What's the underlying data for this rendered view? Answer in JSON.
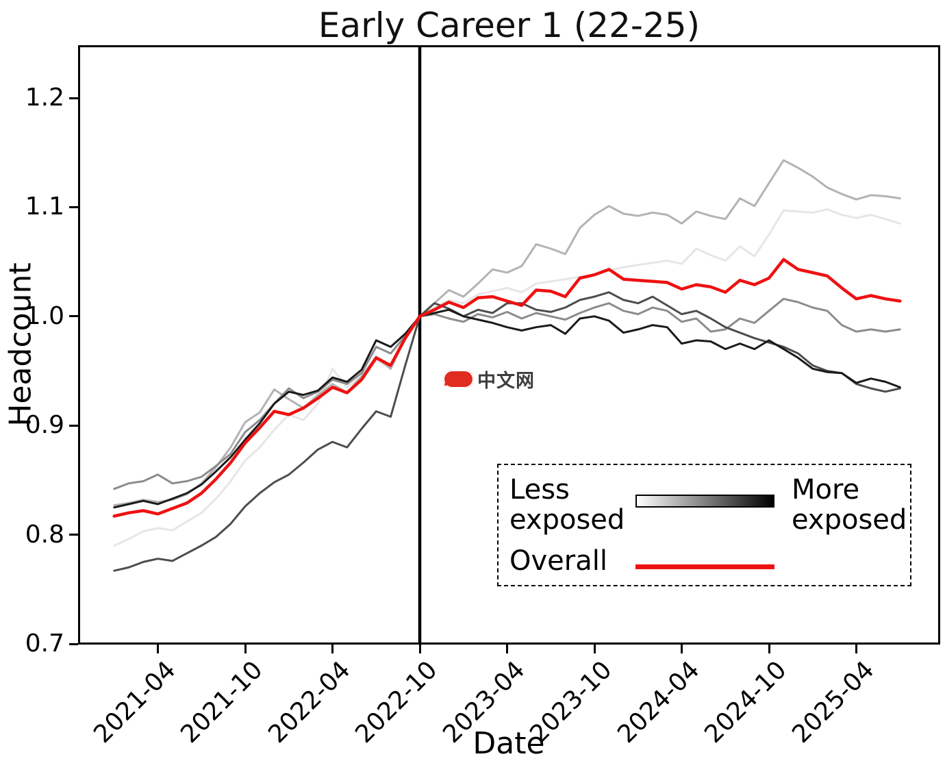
{
  "title": "Early Career 1 (22-25)",
  "xlabel": "Date",
  "ylabel": "Headcount",
  "watermark": {
    "badge": "php",
    "text": "中文网",
    "badge_color": "#e02b20"
  },
  "legend": {
    "less_label": "Less\nexposed",
    "more_label": "More\nexposed",
    "overall_label": "Overall",
    "gradient_from": "#ffffff",
    "gradient_to": "#000000",
    "overall_color": "#ee1111"
  },
  "axes": {
    "y_ticks": [
      {
        "label": "1.2",
        "value": 1.2
      },
      {
        "label": "1.1",
        "value": 1.1
      },
      {
        "label": "1.0",
        "value": 1.0
      },
      {
        "label": "0.9",
        "value": 0.9
      },
      {
        "label": "0.8",
        "value": 0.8
      },
      {
        "label": "0.7",
        "value": 0.7
      }
    ],
    "x_ticks": [
      {
        "label": "2021-04",
        "month_index": 3
      },
      {
        "label": "2021-10",
        "month_index": 9
      },
      {
        "label": "2022-04",
        "month_index": 15
      },
      {
        "label": "2022-10",
        "month_index": 21
      },
      {
        "label": "2023-04",
        "month_index": 27
      },
      {
        "label": "2023-10",
        "month_index": 33
      },
      {
        "label": "2024-04",
        "month_index": 39
      },
      {
        "label": "2024-10",
        "month_index": 45
      },
      {
        "label": "2025-04",
        "month_index": 51
      }
    ]
  },
  "chart_data": {
    "type": "line",
    "title": "Early Career 1 (22-25)",
    "xlabel": "Date",
    "ylabel": "Headcount",
    "ylim": [
      0.7,
      1.248
    ],
    "grid": false,
    "legend_position": "lower-right",
    "event_line_x": "2022-10",
    "x": [
      "2021-01",
      "2021-02",
      "2021-03",
      "2021-04",
      "2021-05",
      "2021-06",
      "2021-07",
      "2021-08",
      "2021-09",
      "2021-10",
      "2021-11",
      "2021-12",
      "2022-01",
      "2022-02",
      "2022-03",
      "2022-04",
      "2022-05",
      "2022-06",
      "2022-07",
      "2022-08",
      "2022-09",
      "2022-10",
      "2022-11",
      "2022-12",
      "2023-01",
      "2023-02",
      "2023-03",
      "2023-04",
      "2023-05",
      "2023-06",
      "2023-07",
      "2023-08",
      "2023-09",
      "2023-10",
      "2023-11",
      "2023-12",
      "2024-01",
      "2024-02",
      "2024-03",
      "2024-04",
      "2024-05",
      "2024-06",
      "2024-07",
      "2024-08",
      "2024-09",
      "2024-10",
      "2024-11",
      "2024-12",
      "2025-01",
      "2025-02",
      "2025-03",
      "2025-04",
      "2025-05",
      "2025-06",
      "2025-07"
    ],
    "series": [
      {
        "name": "exposure-q1-least-exposed",
        "color": "#e6e6e6",
        "width": 3,
        "values": [
          0.79,
          0.796,
          0.803,
          0.806,
          0.804,
          0.812,
          0.82,
          0.833,
          0.849,
          0.868,
          0.88,
          0.896,
          0.91,
          0.905,
          0.92,
          0.952,
          0.935,
          0.945,
          0.96,
          0.952,
          0.982,
          1.0,
          1.008,
          1.015,
          1.012,
          1.02,
          1.023,
          1.026,
          1.022,
          1.03,
          1.032,
          1.034,
          1.036,
          1.038,
          1.042,
          1.045,
          1.047,
          1.049,
          1.051,
          1.048,
          1.062,
          1.056,
          1.051,
          1.064,
          1.055,
          1.075,
          1.097,
          1.096,
          1.095,
          1.098,
          1.093,
          1.09,
          1.093,
          1.089,
          1.085
        ]
      },
      {
        "name": "exposure-q2",
        "color": "#b3b3b3",
        "width": 3,
        "values": [
          0.827,
          0.829,
          0.832,
          0.83,
          0.832,
          0.837,
          0.847,
          0.862,
          0.88,
          0.903,
          0.912,
          0.933,
          0.924,
          0.916,
          0.928,
          0.938,
          0.93,
          0.945,
          0.963,
          0.952,
          0.98,
          1.0,
          1.012,
          1.024,
          1.018,
          1.03,
          1.043,
          1.04,
          1.046,
          1.066,
          1.062,
          1.057,
          1.081,
          1.093,
          1.101,
          1.094,
          1.092,
          1.095,
          1.093,
          1.085,
          1.096,
          1.092,
          1.089,
          1.108,
          1.101,
          1.122,
          1.143,
          1.136,
          1.128,
          1.118,
          1.112,
          1.107,
          1.111,
          1.11,
          1.108
        ]
      },
      {
        "name": "exposure-q3",
        "color": "#8c8c8c",
        "width": 3,
        "values": [
          0.842,
          0.847,
          0.849,
          0.855,
          0.847,
          0.849,
          0.853,
          0.863,
          0.874,
          0.894,
          0.905,
          0.92,
          0.934,
          0.925,
          0.931,
          0.942,
          0.938,
          0.948,
          0.972,
          0.966,
          0.982,
          1.0,
          1.002,
          0.998,
          0.995,
          1.002,
          0.999,
          1.004,
          0.998,
          1.003,
          1.0,
          0.997,
          1.003,
          1.008,
          1.012,
          1.005,
          1.002,
          1.008,
          1.005,
          0.995,
          0.998,
          0.986,
          0.988,
          0.998,
          0.994,
          1.005,
          1.016,
          1.013,
          1.008,
          1.005,
          0.992,
          0.986,
          0.988,
          0.986,
          0.988
        ]
      },
      {
        "name": "exposure-q4",
        "color": "#4d4d4d",
        "width": 3,
        "values": [
          0.767,
          0.77,
          0.775,
          0.778,
          0.776,
          0.783,
          0.79,
          0.798,
          0.81,
          0.826,
          0.838,
          0.848,
          0.855,
          0.866,
          0.878,
          0.885,
          0.88,
          0.897,
          0.913,
          0.908,
          0.955,
          1.0,
          1.012,
          1.007,
          1.0,
          1.006,
          1.003,
          1.012,
          1.012,
          1.006,
          1.004,
          1.008,
          1.015,
          1.018,
          1.022,
          1.015,
          1.012,
          1.018,
          1.01,
          1.002,
          1.005,
          0.998,
          0.99,
          0.985,
          0.98,
          0.976,
          0.972,
          0.966,
          0.955,
          0.95,
          0.948,
          0.938,
          0.934,
          0.931,
          0.934
        ]
      },
      {
        "name": "exposure-q5-most-exposed",
        "color": "#1a1a1a",
        "width": 3,
        "values": [
          0.825,
          0.828,
          0.831,
          0.828,
          0.833,
          0.838,
          0.846,
          0.858,
          0.871,
          0.887,
          0.902,
          0.92,
          0.931,
          0.928,
          0.932,
          0.944,
          0.94,
          0.951,
          0.978,
          0.972,
          0.984,
          1.0,
          1.003,
          1.006,
          1.0,
          0.997,
          0.994,
          0.99,
          0.987,
          0.99,
          0.992,
          0.984,
          0.998,
          1.0,
          0.996,
          0.985,
          0.988,
          0.992,
          0.99,
          0.975,
          0.978,
          0.977,
          0.97,
          0.975,
          0.97,
          0.978,
          0.97,
          0.962,
          0.952,
          0.949,
          0.948,
          0.939,
          0.943,
          0.94,
          0.935
        ]
      },
      {
        "name": "overall",
        "color": "#ee1111",
        "width": 4.5,
        "values": [
          0.817,
          0.82,
          0.822,
          0.819,
          0.824,
          0.829,
          0.838,
          0.851,
          0.866,
          0.884,
          0.898,
          0.913,
          0.91,
          0.916,
          0.925,
          0.935,
          0.93,
          0.942,
          0.962,
          0.955,
          0.98,
          1.0,
          1.006,
          1.013,
          1.008,
          1.017,
          1.018,
          1.014,
          1.01,
          1.024,
          1.023,
          1.018,
          1.035,
          1.038,
          1.043,
          1.034,
          1.033,
          1.032,
          1.031,
          1.025,
          1.029,
          1.027,
          1.022,
          1.033,
          1.029,
          1.035,
          1.052,
          1.043,
          1.04,
          1.037,
          1.026,
          1.016,
          1.019,
          1.016,
          1.014
        ]
      }
    ]
  }
}
